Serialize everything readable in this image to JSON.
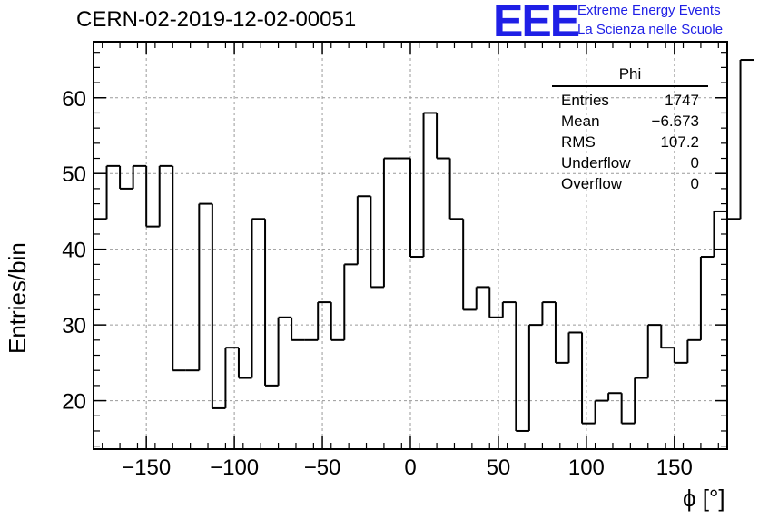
{
  "run_title": "CERN-02-2019-12-02-00051",
  "logo": {
    "text": "EEE",
    "line1": "Extreme Energy Events",
    "line2": "La Scienza nelle Scuole",
    "color": "#1f1fe6"
  },
  "stats": {
    "title": "Phi",
    "rows": [
      {
        "label": "Entries",
        "value": "1747"
      },
      {
        "label": "Mean",
        "value": "−6.673"
      },
      {
        "label": "RMS",
        "value": "107.2"
      },
      {
        "label": "Underflow",
        "value": "0"
      },
      {
        "label": "Overflow",
        "value": "0"
      }
    ]
  },
  "chart_data": {
    "type": "histogram",
    "title": "CERN-02-2019-12-02-00051",
    "xlabel": "ϕ [°]",
    "ylabel": "Entries/bin",
    "xlim": [
      -180,
      180
    ],
    "ylim": [
      13.6,
      67.4
    ],
    "bin_width": 7.5,
    "grid": true,
    "bin_edges_start": -180,
    "values": [
      44,
      51,
      48,
      51,
      43,
      51,
      24,
      24,
      46,
      19,
      27,
      23,
      44,
      22,
      31,
      28,
      28,
      33,
      28,
      38,
      47,
      35,
      52,
      52,
      39,
      58,
      52,
      44,
      32,
      35,
      31,
      33,
      16,
      30,
      33,
      25,
      29,
      17,
      20,
      21,
      17,
      23,
      30,
      27,
      25,
      28,
      39,
      45,
      44,
      65
    ],
    "xticks": [
      -150,
      -100,
      -50,
      0,
      50,
      100,
      150
    ],
    "xtick_labels": [
      "−150",
      "−100",
      "−50",
      "0",
      "50",
      "100",
      "150"
    ],
    "yticks": [
      20,
      30,
      40,
      50,
      60
    ],
    "ytick_labels": [
      "20",
      "30",
      "40",
      "50",
      "60"
    ]
  }
}
